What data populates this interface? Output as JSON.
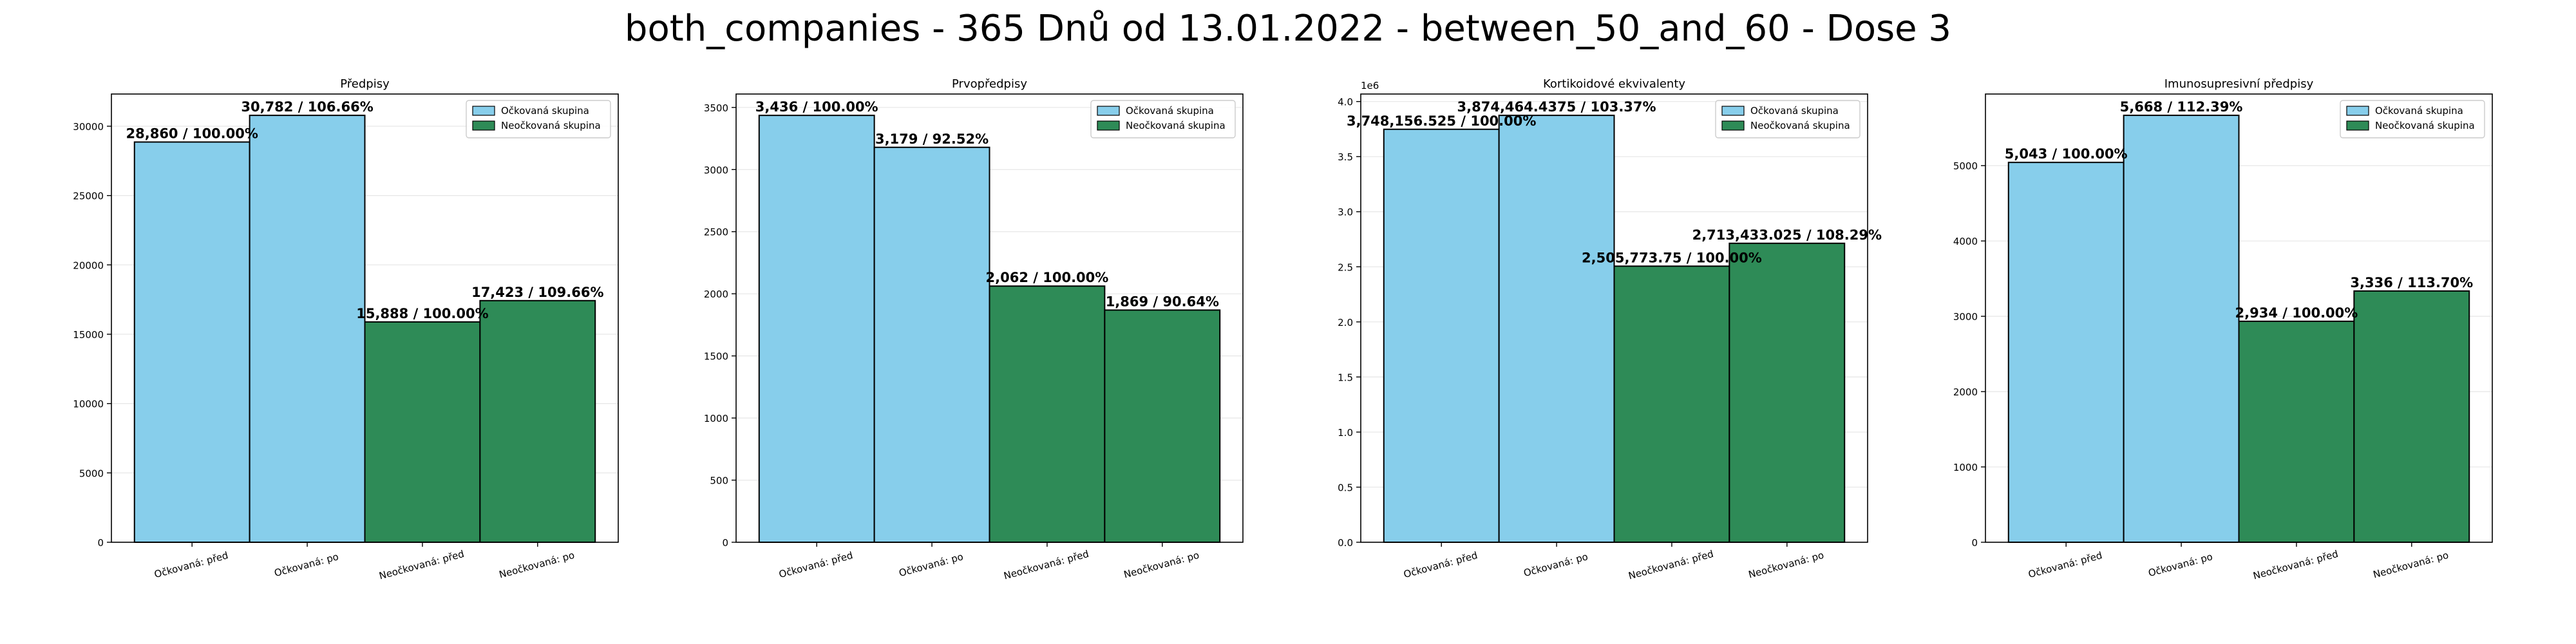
{
  "figure": {
    "title": "both_companies - 365 Dnů od 13.01.2022 - between_50_and_60 - Dose 3"
  },
  "colors": {
    "vaccinated": "#87ceeb",
    "unvaccinated": "#2e8b57",
    "edge": "#000000",
    "grid": "#e6e6e6"
  },
  "chart_data": [
    {
      "type": "bar",
      "title": "Předpisy",
      "categories": [
        "Očkovaná: před",
        "Očkovaná: po",
        "Neočkovaná: před",
        "Neočkovaná: po"
      ],
      "values": [
        28860,
        30782,
        15888,
        17423
      ],
      "labels": [
        "28,860 / 100.00%",
        "30,782 / 106.66%",
        "15,888 / 100.00%",
        "17,423 / 109.66%"
      ],
      "ylim": [
        0,
        32321
      ],
      "yticks": [
        0,
        5000,
        10000,
        15000,
        20000,
        25000,
        30000
      ],
      "ytick_labels": [
        "0",
        "5000",
        "10000",
        "15000",
        "20000",
        "25000",
        "30000"
      ],
      "legend": [
        "Očkovaná skupina",
        "Neočkovaná skupina"
      ],
      "legend_position": "upper right",
      "grid": true
    },
    {
      "type": "bar",
      "title": "Prvopředpisy",
      "categories": [
        "Očkovaná: před",
        "Očkovaná: po",
        "Neočkovaná: před",
        "Neočkovaná: po"
      ],
      "values": [
        3436,
        3179,
        2062,
        1869
      ],
      "labels": [
        "3,436 / 100.00%",
        "3,179 / 92.52%",
        "2,062 / 100.00%",
        "1,869 / 90.64%"
      ],
      "ylim": [
        0,
        3608
      ],
      "yticks": [
        0,
        500,
        1000,
        1500,
        2000,
        2500,
        3000,
        3500
      ],
      "ytick_labels": [
        "0",
        "500",
        "1000",
        "1500",
        "2000",
        "2500",
        "3000",
        "3500"
      ],
      "legend": [
        "Očkovaná skupina",
        "Neočkovaná skupina"
      ],
      "legend_position": "upper right",
      "grid": true
    },
    {
      "type": "bar",
      "title": "Kortikoidové ekvivalenty",
      "categories": [
        "Očkovaná: před",
        "Očkovaná: po",
        "Neočkovaná: před",
        "Neočkovaná: po"
      ],
      "values": [
        3748156.525,
        3874464.4375,
        2505773.75,
        2713433.025
      ],
      "labels": [
        "3,748,156.525 / 100.00%",
        "3,874,464.4375 / 103.37%",
        "2,505,773.75 / 100.00%",
        "2,713,433.025 / 108.29%"
      ],
      "ylim": [
        0,
        4068188
      ],
      "yticks": [
        0,
        500000,
        1000000,
        1500000,
        2000000,
        2500000,
        3000000,
        3500000,
        4000000
      ],
      "ytick_labels": [
        "0.0",
        "0.5",
        "1.0",
        "1.5",
        "2.0",
        "2.5",
        "3.0",
        "3.5",
        "4.0"
      ],
      "offset_label": "1e6",
      "legend": [
        "Očkovaná skupina",
        "Neočkovaná skupina"
      ],
      "legend_position": "upper right",
      "grid": true
    },
    {
      "type": "bar",
      "title": "Imunosupresivní předpisy",
      "categories": [
        "Očkovaná: před",
        "Očkovaná: po",
        "Neočkovaná: před",
        "Neočkovaná: po"
      ],
      "values": [
        5043,
        5668,
        2934,
        3336
      ],
      "labels": [
        "5,043 / 100.00%",
        "5,668 / 112.39%",
        "2,934 / 100.00%",
        "3,336 / 113.70%"
      ],
      "ylim": [
        0,
        5951
      ],
      "yticks": [
        0,
        1000,
        2000,
        3000,
        4000,
        5000
      ],
      "ytick_labels": [
        "0",
        "1000",
        "2000",
        "3000",
        "4000",
        "5000"
      ],
      "legend": [
        "Očkovaná skupina",
        "Neočkovaná skupina"
      ],
      "legend_position": "upper right",
      "grid": true
    }
  ]
}
